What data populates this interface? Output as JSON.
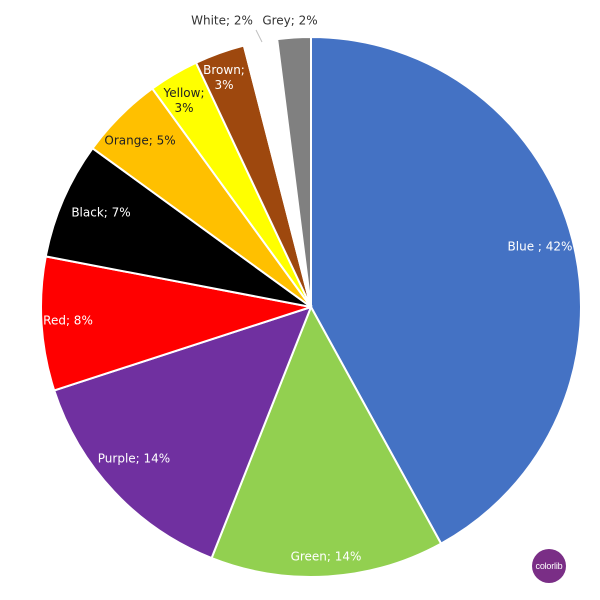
{
  "chart_data": {
    "type": "pie",
    "title": "",
    "slices": [
      {
        "label": "Blue ; 42%",
        "value": 42,
        "color": "#4472c4"
      },
      {
        "label": "Green; 14%",
        "value": 14,
        "color": "#92d050"
      },
      {
        "label": "Purple; 14%",
        "value": 14,
        "color": "#7030a0"
      },
      {
        "label": "Red; 8%",
        "value": 8,
        "color": "#ff0000"
      },
      {
        "label": "Black; 7%",
        "value": 7,
        "color": "#000000"
      },
      {
        "label": "Orange; 5%",
        "value": 5,
        "color": "#ffc000"
      },
      {
        "label": "Yellow; 3%",
        "value": 3,
        "color": "#ffff00"
      },
      {
        "label": "Brown; 3%",
        "value": 3,
        "color": "#9e480e"
      },
      {
        "label": "White; 2%",
        "value": 2,
        "color": "#ffffff"
      },
      {
        "label": "Grey; 2%",
        "value": 2,
        "color": "#808080"
      }
    ]
  },
  "watermark": {
    "text": "colorlib",
    "color": "#7a2e86"
  }
}
